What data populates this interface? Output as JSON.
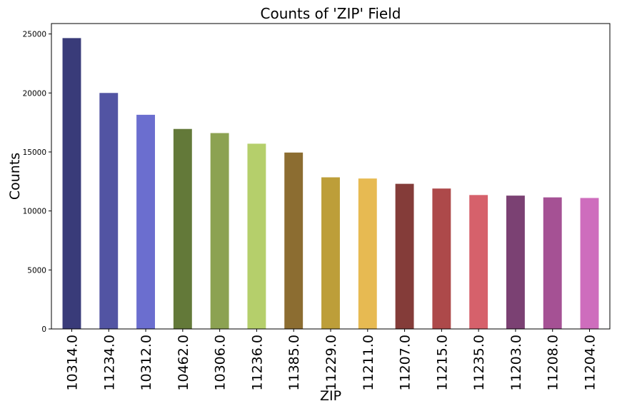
{
  "chart_data": {
    "type": "bar",
    "title": "Counts of 'ZIP' Field",
    "xlabel": "ZIP",
    "ylabel": "Counts",
    "categories": [
      "10314.0",
      "11234.0",
      "10312.0",
      "10462.0",
      "10306.0",
      "11236.0",
      "11385.0",
      "11229.0",
      "11211.0",
      "11207.0",
      "11215.0",
      "11235.0",
      "11203.0",
      "11208.0",
      "11204.0"
    ],
    "values": [
      24650,
      20000,
      18150,
      16950,
      16600,
      15700,
      14950,
      12850,
      12750,
      12300,
      11900,
      11350,
      11300,
      11150,
      11100
    ],
    "colors": [
      "#393b79",
      "#5254a3",
      "#6b6ecf",
      "#637939",
      "#8ca252",
      "#b5cf6b",
      "#8c6d31",
      "#bd9e39",
      "#e7ba52",
      "#843c39",
      "#ad494a",
      "#d6616b",
      "#7b4173",
      "#a55194",
      "#ce6dbd"
    ],
    "yticks": [
      0,
      5000,
      10000,
      15000,
      20000,
      25000
    ],
    "ylim": [
      0,
      25883
    ],
    "grid": false,
    "legend": "none"
  }
}
